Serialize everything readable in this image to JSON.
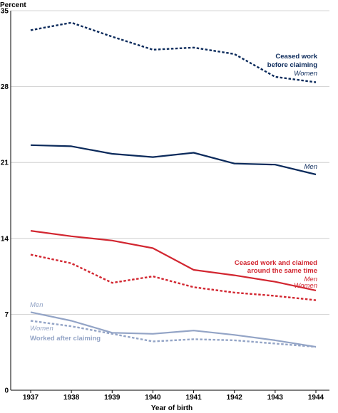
{
  "chart_data": {
    "type": "line",
    "ylabel": "Percent",
    "xlabel": "Year of birth",
    "ylim": [
      0,
      35
    ],
    "yticks": [
      0,
      7,
      14,
      21,
      28,
      35
    ],
    "grid": true,
    "x": [
      "1937",
      "1938",
      "1939",
      "1940",
      "1941",
      "1942",
      "1943",
      "1944"
    ],
    "series": [
      {
        "group": "ceased_before",
        "name": "Women",
        "style": "dotted",
        "color": "#0b2a5b",
        "values": [
          33.2,
          33.9,
          32.6,
          31.4,
          31.6,
          31.0,
          28.9,
          28.4
        ]
      },
      {
        "group": "ceased_before",
        "name": "Men",
        "style": "solid",
        "color": "#0b2a5b",
        "values": [
          22.6,
          22.5,
          21.8,
          21.5,
          21.9,
          20.9,
          20.8,
          19.9
        ]
      },
      {
        "group": "same_time",
        "name": "Men",
        "style": "solid",
        "color": "#d22630",
        "values": [
          14.7,
          14.2,
          13.8,
          13.1,
          11.1,
          10.6,
          10.0,
          9.2
        ]
      },
      {
        "group": "same_time",
        "name": "Women",
        "style": "dotted",
        "color": "#d22630",
        "values": [
          12.5,
          11.7,
          9.9,
          10.5,
          9.5,
          9.0,
          8.7,
          8.3
        ]
      },
      {
        "group": "after",
        "name": "Men",
        "style": "solid",
        "color": "#93a4c6",
        "values": [
          7.2,
          6.4,
          5.3,
          5.2,
          5.5,
          5.1,
          4.6,
          4.0
        ]
      },
      {
        "group": "after",
        "name": "Women",
        "style": "dotted",
        "color": "#93a4c6",
        "values": [
          6.4,
          5.9,
          5.2,
          4.5,
          4.7,
          4.6,
          4.3,
          4.0
        ]
      }
    ],
    "annotations": {
      "ceased_before_title_1": "Ceased work",
      "ceased_before_title_2": "before claiming",
      "ceased_before_women": "Women",
      "ceased_before_men": "Men",
      "same_time_title_1": "Ceased work and claimed",
      "same_time_title_2": "around the same time",
      "same_time_men": "Men",
      "same_time_women": "Women",
      "after_men": "Men",
      "after_women": "Women",
      "after_title": "Worked after claiming"
    }
  }
}
